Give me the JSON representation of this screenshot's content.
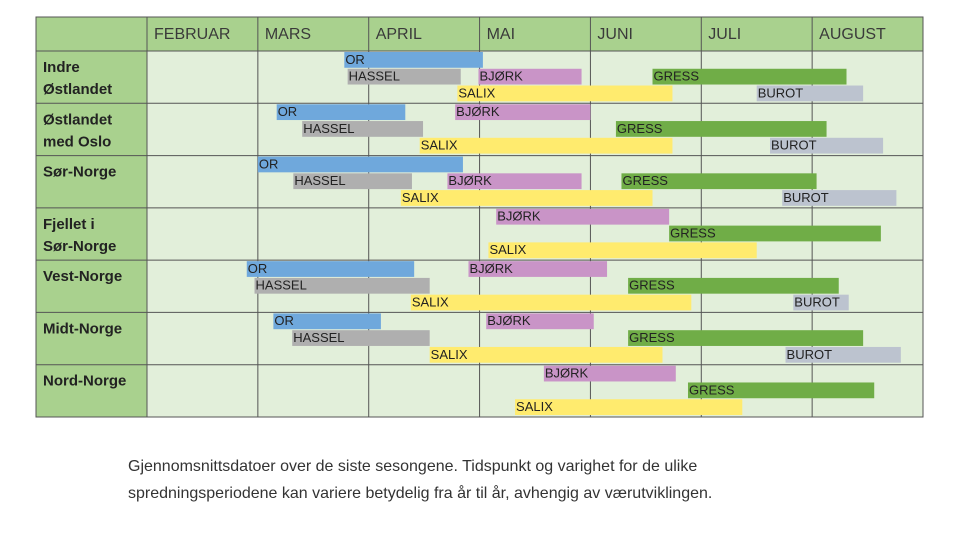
{
  "chart_data": {
    "type": "gantt",
    "categories": [
      "FEBRUAR",
      "MARS",
      "APRIL",
      "MAI",
      "JUNI",
      "JULI",
      "AUGUST"
    ],
    "xlim": [
      0,
      7
    ],
    "caption": [
      "Gjennomsnittsdatoer over de siste sesongene. Tidspunkt og varighet for de ulike",
      "spredningsperiodene kan variere betydelig fra år til år, avhengig av værutviklingen."
    ],
    "rows": [
      {
        "label": [
          "Indre",
          "Østlandet"
        ],
        "lanes": [
          [
            {
              "label": "OR",
              "start": 1.78,
              "end": 3.03,
              "color": "#6fa8dc"
            }
          ],
          [
            {
              "label": "HASSEL",
              "start": 1.81,
              "end": 2.83,
              "color": "#afafaf"
            },
            {
              "label": "BJØRK",
              "start": 2.99,
              "end": 3.92,
              "color": "#c994c7"
            },
            {
              "label": "GRESS",
              "start": 4.56,
              "end": 6.31,
              "color": "#70ad47"
            }
          ],
          [
            {
              "label": "SALIX",
              "start": 2.8,
              "end": 4.74,
              "color": "#ffeb6e"
            },
            {
              "label": "BUROT",
              "start": 5.5,
              "end": 6.46,
              "color": "#bcc3cf"
            }
          ]
        ]
      },
      {
        "label": [
          "Østlandet",
          "med Oslo"
        ],
        "lanes": [
          [
            {
              "label": "OR",
              "start": 1.17,
              "end": 2.33,
              "color": "#6fa8dc"
            },
            {
              "label": "BJØRK",
              "start": 2.78,
              "end": 4.0,
              "color": "#c994c7"
            }
          ],
          [
            {
              "label": "HASSEL",
              "start": 1.4,
              "end": 2.49,
              "color": "#afafaf"
            },
            {
              "label": "GRESS",
              "start": 4.23,
              "end": 6.13,
              "color": "#70ad47"
            }
          ],
          [
            {
              "label": "SALIX",
              "start": 2.46,
              "end": 4.74,
              "color": "#ffeb6e"
            },
            {
              "label": "BUROT",
              "start": 5.62,
              "end": 6.64,
              "color": "#bcc3cf"
            }
          ]
        ]
      },
      {
        "label": [
          "Sør-Norge"
        ],
        "lanes": [
          [
            {
              "label": "OR",
              "start": 1.0,
              "end": 2.85,
              "color": "#6fa8dc"
            }
          ],
          [
            {
              "label": "HASSEL",
              "start": 1.32,
              "end": 2.39,
              "color": "#afafaf"
            },
            {
              "label": "BJØRK",
              "start": 2.71,
              "end": 3.92,
              "color": "#c994c7"
            },
            {
              "label": "GRESS",
              "start": 4.28,
              "end": 6.04,
              "color": "#70ad47"
            }
          ],
          [
            {
              "label": "SALIX",
              "start": 2.29,
              "end": 4.56,
              "color": "#ffeb6e"
            },
            {
              "label": "BUROT",
              "start": 5.73,
              "end": 6.76,
              "color": "#bcc3cf"
            }
          ]
        ]
      },
      {
        "label": [
          "Fjellet i",
          "Sør-Norge"
        ],
        "lanes": [
          [
            {
              "label": "BJØRK",
              "start": 3.15,
              "end": 4.71,
              "color": "#c994c7"
            }
          ],
          [
            {
              "label": "GRESS",
              "start": 4.71,
              "end": 6.62,
              "color": "#70ad47"
            }
          ],
          [
            {
              "label": "SALIX",
              "start": 3.08,
              "end": 5.5,
              "color": "#ffeb6e"
            }
          ]
        ]
      },
      {
        "label": [
          "Vest-Norge"
        ],
        "lanes": [
          [
            {
              "label": "OR",
              "start": 0.9,
              "end": 2.41,
              "color": "#6fa8dc"
            },
            {
              "label": "BJØRK",
              "start": 2.9,
              "end": 4.15,
              "color": "#c994c7"
            }
          ],
          [
            {
              "label": "HASSEL",
              "start": 0.97,
              "end": 2.55,
              "color": "#afafaf"
            },
            {
              "label": "GRESS",
              "start": 4.34,
              "end": 6.24,
              "color": "#70ad47"
            }
          ],
          [
            {
              "label": "SALIX",
              "start": 2.38,
              "end": 4.91,
              "color": "#ffeb6e"
            },
            {
              "label": "BUROT",
              "start": 5.83,
              "end": 6.33,
              "color": "#bcc3cf"
            }
          ]
        ]
      },
      {
        "label": [
          "Midt-Norge"
        ],
        "lanes": [
          [
            {
              "label": "OR",
              "start": 1.14,
              "end": 2.11,
              "color": "#6fa8dc"
            },
            {
              "label": "BJØRK",
              "start": 3.06,
              "end": 4.03,
              "color": "#c994c7"
            }
          ],
          [
            {
              "label": "HASSEL",
              "start": 1.31,
              "end": 2.55,
              "color": "#afafaf"
            },
            {
              "label": "GRESS",
              "start": 4.34,
              "end": 6.46,
              "color": "#70ad47"
            }
          ],
          [
            {
              "label": "SALIX",
              "start": 2.55,
              "end": 4.65,
              "color": "#ffeb6e"
            },
            {
              "label": "BUROT",
              "start": 5.76,
              "end": 6.8,
              "color": "#bcc3cf"
            }
          ]
        ]
      },
      {
        "label": [
          "Nord-Norge"
        ],
        "lanes": [
          [
            {
              "label": "BJØRK",
              "start": 3.58,
              "end": 4.77,
              "color": "#c994c7"
            }
          ],
          [
            {
              "label": "GRESS",
              "start": 4.88,
              "end": 6.56,
              "color": "#70ad47"
            }
          ],
          [
            {
              "label": "SALIX",
              "start": 3.32,
              "end": 5.37,
              "color": "#ffeb6e"
            }
          ]
        ]
      }
    ]
  }
}
